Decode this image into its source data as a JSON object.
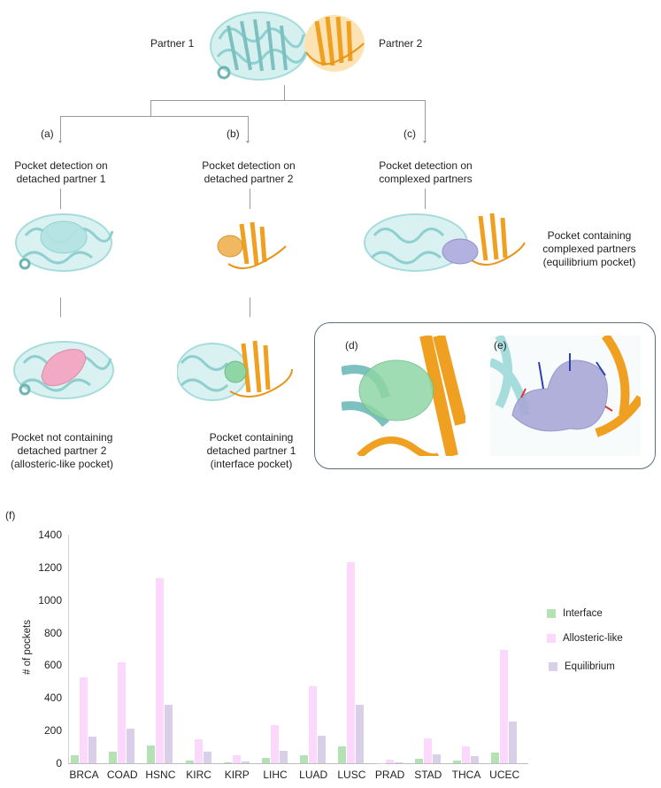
{
  "figure": {
    "top": {
      "partner1_label": "Partner 1",
      "partner2_label": "Partner 2"
    },
    "branches": [
      {
        "tag": "(a)",
        "title_line1": "Pocket detection on",
        "title_line2": "detached partner 1",
        "result_line1": "Pocket not containing",
        "result_line2": "detached partner 2",
        "result_line3": "(allosteric-like pocket)"
      },
      {
        "tag": "(b)",
        "title_line1": "Pocket detection on",
        "title_line2": "detached partner 2",
        "result_line1": "Pocket containing",
        "result_line2": "detached partner 1",
        "result_line3": "(interface pocket)"
      },
      {
        "tag": "(c)",
        "title_line1": "Pocket detection on",
        "title_line2": "complexed partners",
        "result_line1": "Pocket containing",
        "result_line2": "complexed partners",
        "result_line3": "(equilibrium pocket)"
      }
    ],
    "zoom_panels": [
      {
        "tag": "(d)"
      },
      {
        "tag": "(e)"
      }
    ],
    "colors": {
      "partner1": "#a6dcdc",
      "partner1_dark": "#6fb4b4",
      "partner2": "#f0a020",
      "partner2_dark": "#c87d0a",
      "allosteric_surface": "#f2a9c4",
      "interface_surface": "#8fd6a6",
      "equilibrium_surface": "#a9a8d8",
      "connector": "#9a9a9a",
      "panel_border": "#5b6f80"
    }
  },
  "chart_data": {
    "panel_tag": "(f)",
    "type": "bar",
    "title": "",
    "xlabel": "",
    "ylabel": "# of pockets",
    "ylim": [
      0,
      1400
    ],
    "yticks": [
      0,
      200,
      400,
      600,
      800,
      1000,
      1200,
      1400
    ],
    "grid": false,
    "legend_position": "right",
    "categories": [
      "BRCA",
      "COAD",
      "HSNC",
      "KIRC",
      "KIRP",
      "LIHC",
      "LUAD",
      "LUSC",
      "PRAD",
      "STAD",
      "THCA",
      "UCEC"
    ],
    "series": [
      {
        "name": "Interface",
        "color": "#b5e2b5",
        "values": [
          51,
          69,
          107,
          18,
          5,
          33,
          47,
          102,
          1,
          29,
          15,
          65
        ]
      },
      {
        "name": "Allosteric-like",
        "color": "#fcd9fc",
        "values": [
          526,
          617,
          1136,
          147,
          47,
          232,
          472,
          1234,
          22,
          152,
          105,
          697
        ]
      },
      {
        "name": "Equilibrium",
        "color": "#d9cfe8",
        "values": [
          163,
          214,
          356,
          71,
          11,
          78,
          167,
          356,
          6,
          54,
          44,
          256
        ]
      }
    ]
  }
}
